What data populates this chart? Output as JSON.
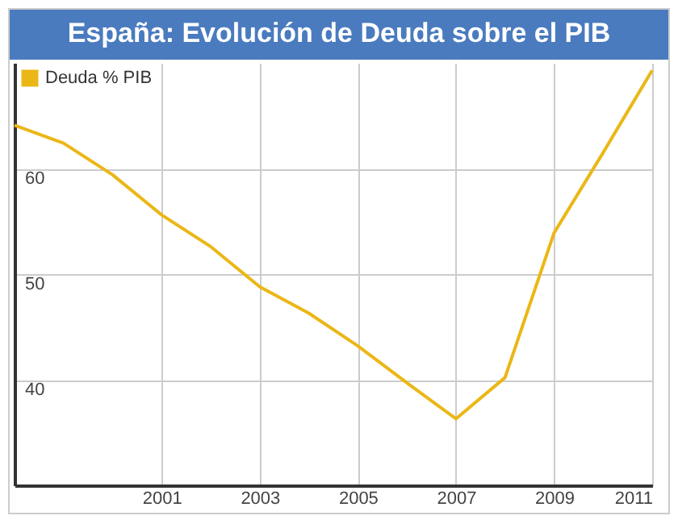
{
  "chart_data": {
    "type": "line",
    "title": "España: Evolución de Deuda sobre el PIB",
    "x": [
      1998,
      1999,
      2000,
      2001,
      2002,
      2003,
      2004,
      2005,
      2006,
      2007,
      2008,
      2009,
      2010,
      2011
    ],
    "series": [
      {
        "name": "Deuda % PIB",
        "color": "#ebb716",
        "values": [
          64.1,
          62.4,
          59.4,
          55.6,
          52.6,
          48.8,
          46.3,
          43.2,
          39.7,
          36.3,
          40.2,
          53.9,
          61.5,
          69.3
        ]
      }
    ],
    "xlim": [
      1998,
      2011
    ],
    "xticks": [
      2001,
      2003,
      2005,
      2007,
      2009,
      2011
    ],
    "ylim": [
      30,
      70
    ],
    "yticks": [
      40,
      50,
      60
    ],
    "grid": true,
    "legend": "top left",
    "marker": "none",
    "line_style": "solid"
  }
}
